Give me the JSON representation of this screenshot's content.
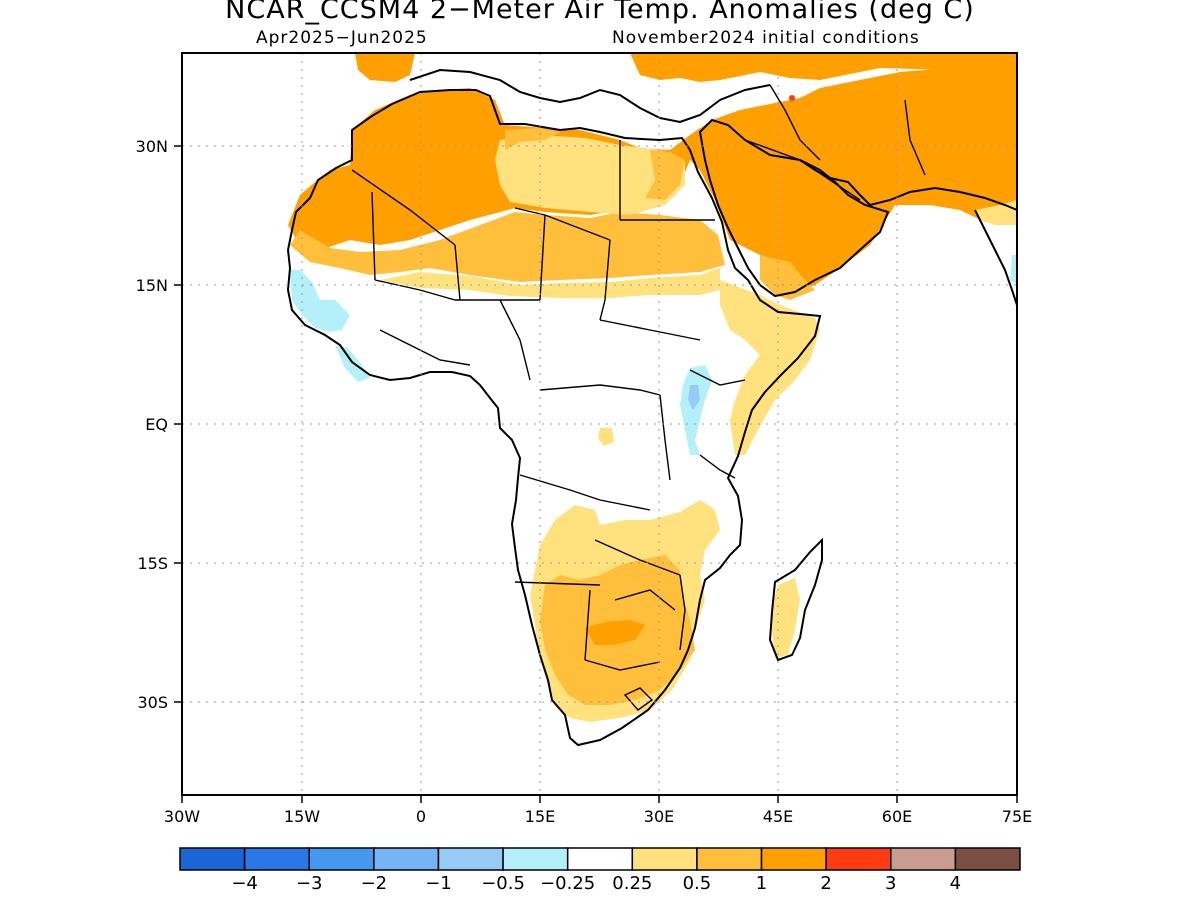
{
  "title": "NCAR_CCSM4 2−Meter Air Temp. Anomalies (deg C)",
  "subtitle_left": "Apr2025−Jun2025",
  "subtitle_right": "November2024 initial conditions",
  "map": {
    "region": "Africa",
    "lon_range": [
      -30,
      75
    ],
    "lat_range": [
      -40,
      40
    ],
    "lon_ticks": [
      "30W",
      "15W",
      "0",
      "15E",
      "30E",
      "45E",
      "60E",
      "75E"
    ],
    "lat_ticks": [
      "30N",
      "15N",
      "EQ",
      "15S",
      "30S"
    ],
    "grid": "dotted"
  },
  "colorbar": {
    "colors": [
      "#1a66d6",
      "#2a78e8",
      "#4598f0",
      "#75b4f6",
      "#96cbf8",
      "#b4f0fa",
      "#ffffff",
      "#ffe27e",
      "#ffbf3a",
      "#ffa000",
      "#ff3c10",
      "#c89c8e",
      "#7a4e40"
    ],
    "labels": [
      "−4",
      "−3",
      "−2",
      "−1",
      "−0.5",
      "−0.25",
      "0.25",
      "0.5",
      "1",
      "2",
      "3",
      "4"
    ]
  },
  "anomaly_colors": {
    "weak_warm": "#ffe27e",
    "moderate_warm": "#ffbf3a",
    "strong_warm": "#ffa000",
    "very_strong_warm": "#ff3c10",
    "weak_cool": "#b4f0fa",
    "moderate_cool": "#96cbf8"
  }
}
